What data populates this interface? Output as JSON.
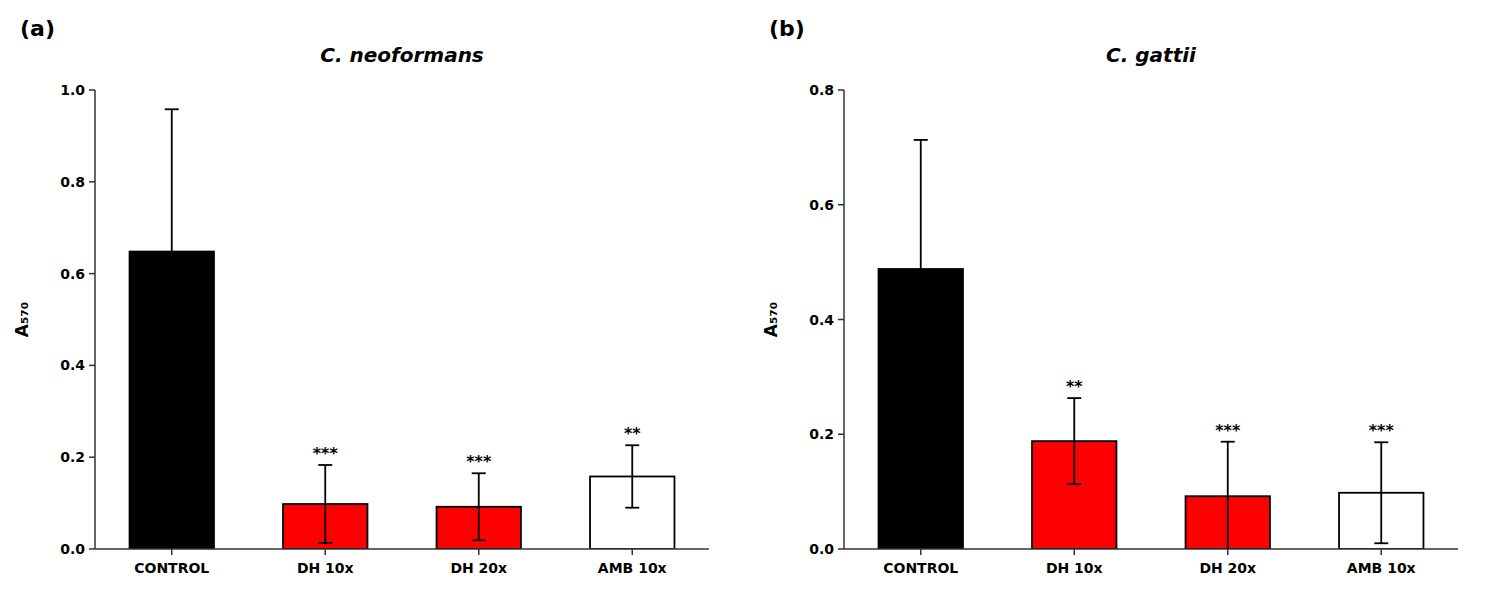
{
  "chart_data": [
    {
      "type": "bar",
      "title": "C. neoformans",
      "panel_label": "(a)",
      "y_label": "A₅₇₀",
      "categories": [
        "CONTROL",
        "DH 10x",
        "DH 20x",
        "AMB 10x"
      ],
      "values": [
        0.648,
        0.098,
        0.092,
        0.158
      ],
      "errors": [
        0.31,
        0.085,
        0.073,
        0.068
      ],
      "significance": [
        null,
        "***",
        "***",
        "**"
      ],
      "colors": [
        "#000000",
        "#ff0000",
        "#ff0000",
        "#ffffff"
      ],
      "ylim": [
        0,
        1.0
      ],
      "yticks": [
        {
          "value": 0,
          "label": "0.0"
        },
        0.2,
        0.4,
        0.6,
        0.8,
        {
          "value": 1,
          "label": "1.0"
        }
      ],
      "grid": false
    },
    {
      "type": "bar",
      "title": "C. gattii",
      "panel_label": "(b)",
      "y_label": "A₅₇₀",
      "categories": [
        "CONTROL",
        "DH 10x",
        "DH 20x",
        "AMB 10x"
      ],
      "values": [
        0.488,
        0.188,
        0.092,
        0.098
      ],
      "errors": [
        0.225,
        0.075,
        0.095,
        0.088
      ],
      "significance": [
        null,
        "**",
        "***",
        "***"
      ],
      "colors": [
        "#000000",
        "#ff0000",
        "#ff0000",
        "#ffffff"
      ],
      "ylim": [
        0,
        0.8
      ],
      "yticks": [
        {
          "value": 0,
          "label": "0.0"
        },
        0.2,
        0.4,
        0.6,
        0.8
      ],
      "grid": false
    }
  ]
}
